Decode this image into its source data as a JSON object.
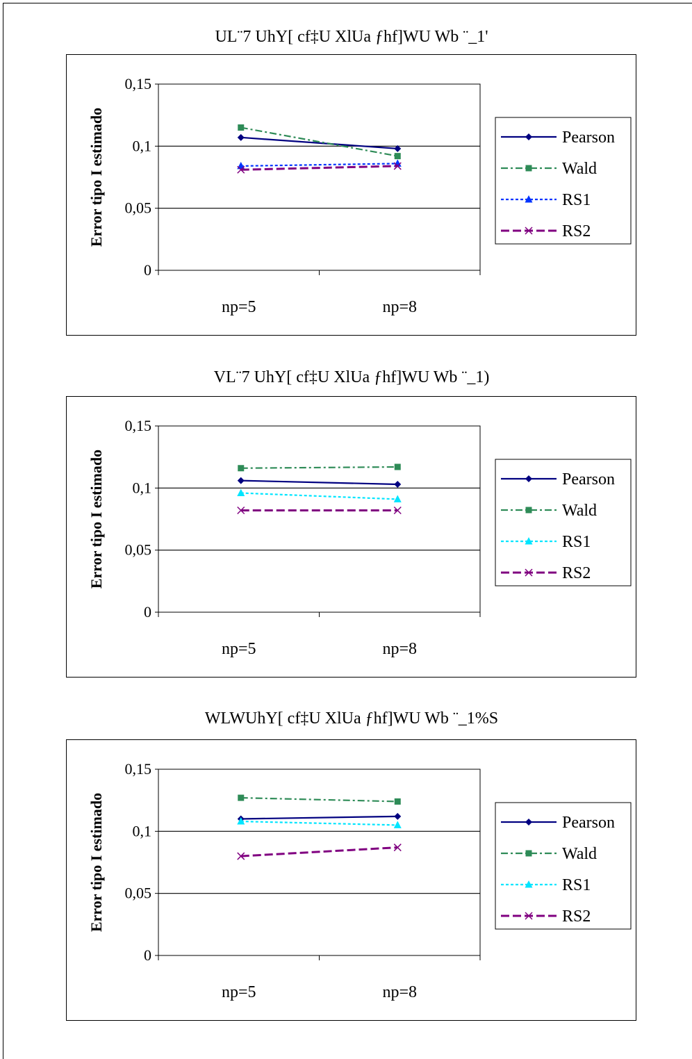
{
  "colors": {
    "Pearson": "#000080",
    "Wald": "#2e8b57",
    "RS1_a": "#0033ff",
    "RS1_b": "#00e5ff",
    "RS2": "#800080"
  },
  "chart_data": [
    {
      "type": "line",
      "title": "UL¨7 UhY[ cf‡U XlUa ƒhf]WU Wb ¨_1'",
      "ylabel": "Error tipo I estimado",
      "xlabel": "",
      "categories": [
        "np=5",
        "np=8"
      ],
      "ylim": [
        0,
        0.15
      ],
      "yticks": [
        "0",
        "0,05",
        "0,1",
        "0,15"
      ],
      "ytick_values": [
        0,
        0.05,
        0.1,
        0.15
      ],
      "grid": true,
      "legend": "right",
      "series": [
        {
          "name": "Pearson",
          "values": [
            0.107,
            0.098
          ],
          "color": "#000080",
          "dash": "",
          "marker": "diamond"
        },
        {
          "name": "Wald",
          "values": [
            0.115,
            0.092
          ],
          "color": "#2e8b57",
          "dash": "10,4,3,4",
          "marker": "square"
        },
        {
          "name": "RS1",
          "values": [
            0.084,
            0.086
          ],
          "color": "#0033ff",
          "dash": "4,3",
          "marker": "triangle"
        },
        {
          "name": "RS2",
          "values": [
            0.081,
            0.084
          ],
          "color": "#800080",
          "dash": "12,5",
          "marker": "x"
        }
      ]
    },
    {
      "type": "line",
      "title": "VL¨7 UhY[ cf‡U XlUa ƒhf]WU Wb ¨_1)",
      "ylabel": "Error tipo I estimado",
      "xlabel": "",
      "categories": [
        "np=5",
        "np=8"
      ],
      "ylim": [
        0,
        0.15
      ],
      "yticks": [
        "0",
        "0,05",
        "0,1",
        "0,15"
      ],
      "ytick_values": [
        0,
        0.05,
        0.1,
        0.15
      ],
      "grid": true,
      "legend": "right",
      "series": [
        {
          "name": "Pearson",
          "values": [
            0.106,
            0.103
          ],
          "color": "#000080",
          "dash": "",
          "marker": "diamond"
        },
        {
          "name": "Wald",
          "values": [
            0.116,
            0.117
          ],
          "color": "#2e8b57",
          "dash": "10,4,3,4",
          "marker": "square"
        },
        {
          "name": "RS1",
          "values": [
            0.096,
            0.091
          ],
          "color": "#00e5ff",
          "dash": "4,3",
          "marker": "triangle"
        },
        {
          "name": "RS2",
          "values": [
            0.082,
            0.082
          ],
          "color": "#800080",
          "dash": "12,5",
          "marker": "x"
        }
      ]
    },
    {
      "type": "line",
      "title": "WLWUhY[ cf‡U XlUa ƒhf]WU Wb ¨_1%S",
      "ylabel": "Error tipo I estimado",
      "xlabel": "",
      "categories": [
        "np=5",
        "np=8"
      ],
      "ylim": [
        0,
        0.15
      ],
      "yticks": [
        "0",
        "0,05",
        "0,1",
        "0,15"
      ],
      "ytick_values": [
        0,
        0.05,
        0.1,
        0.15
      ],
      "grid": true,
      "legend": "right",
      "series": [
        {
          "name": "Pearson",
          "values": [
            0.11,
            0.112
          ],
          "color": "#000080",
          "dash": "",
          "marker": "diamond"
        },
        {
          "name": "Wald",
          "values": [
            0.127,
            0.124
          ],
          "color": "#2e8b57",
          "dash": "10,4,3,4",
          "marker": "square"
        },
        {
          "name": "RS1",
          "values": [
            0.108,
            0.105
          ],
          "color": "#00e5ff",
          "dash": "4,3",
          "marker": "triangle"
        },
        {
          "name": "RS2",
          "values": [
            0.08,
            0.087
          ],
          "color": "#800080",
          "dash": "12,5",
          "marker": "x"
        }
      ]
    }
  ]
}
